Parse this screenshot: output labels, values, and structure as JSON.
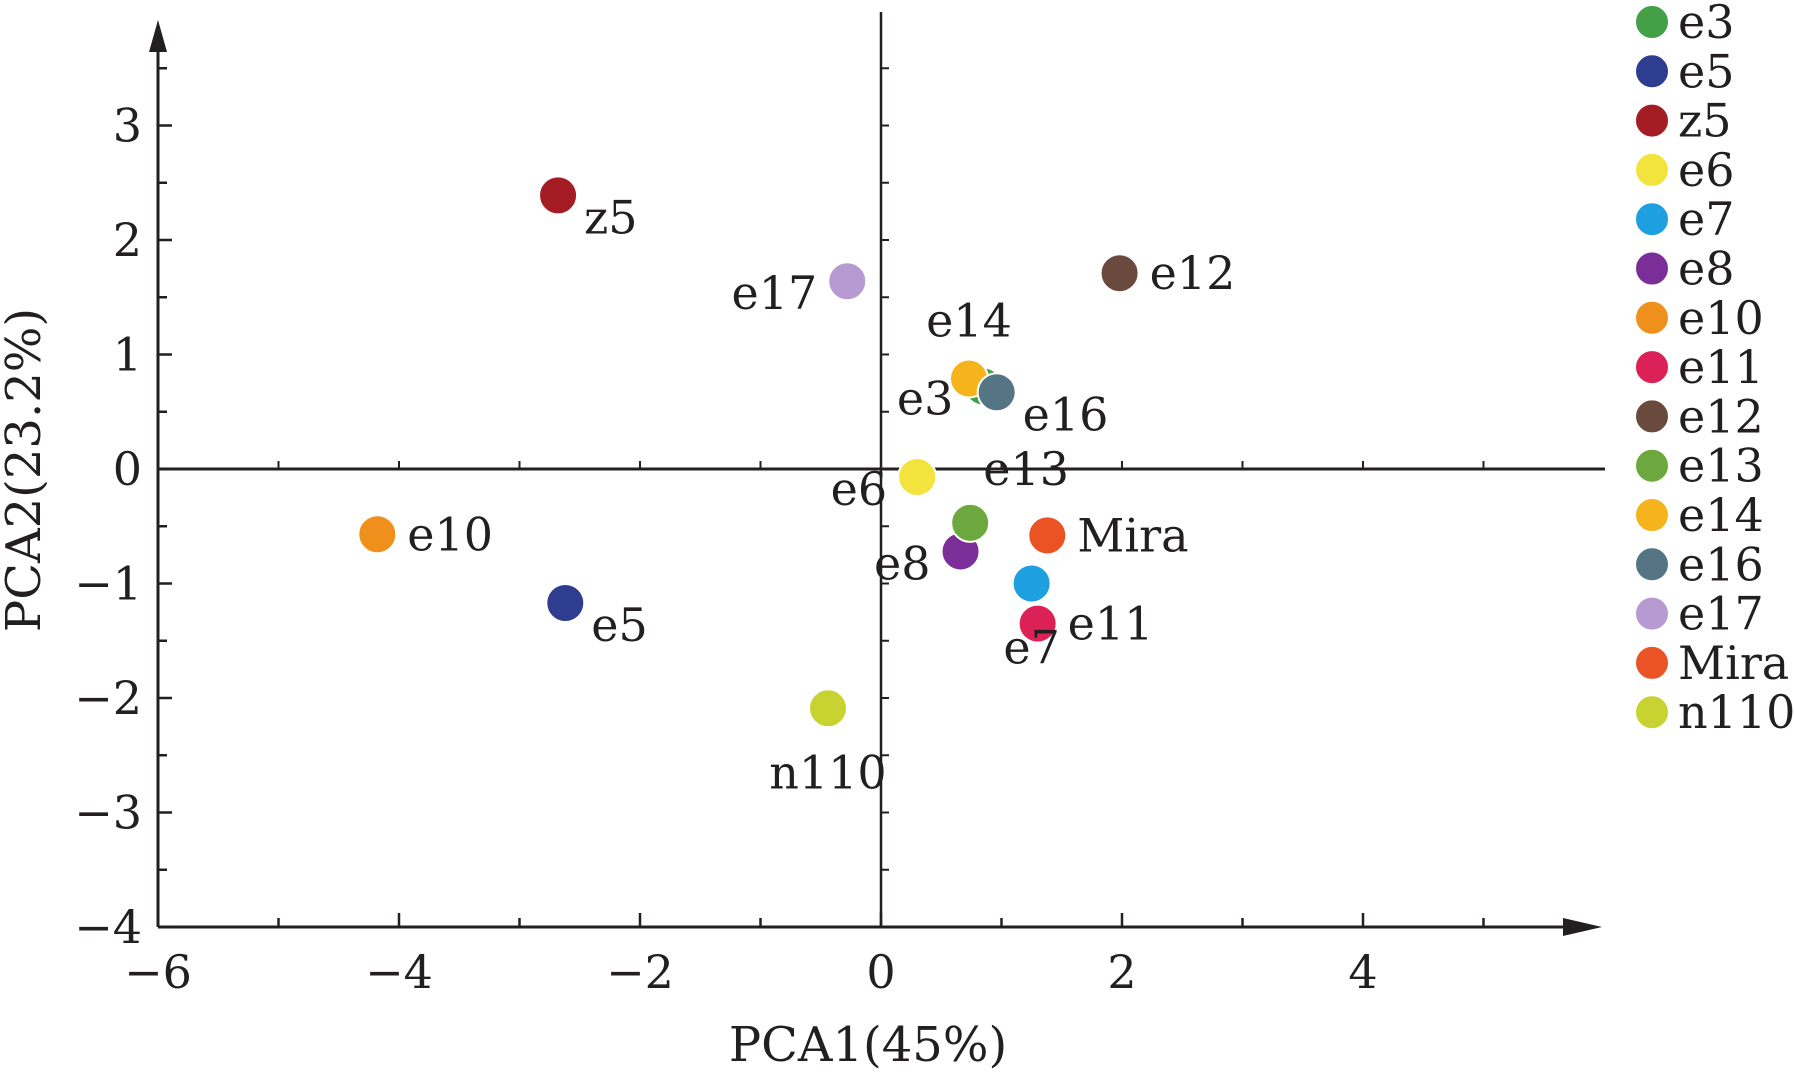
{
  "chart_data": {
    "type": "scatter",
    "title": "",
    "xlabel": "PCA1(45%)",
    "ylabel": "PCA2(23.2%)",
    "xlim": [
      -6,
      6
    ],
    "ylim": [
      -4,
      4
    ],
    "xticks": [
      -6,
      -4,
      -2,
      0,
      2,
      4
    ],
    "yticks": [
      -4,
      -3,
      -2,
      -1,
      0,
      1,
      2,
      3
    ],
    "x_tick_labels": [
      "−6",
      "−4",
      "−2",
      "0",
      "2",
      "4"
    ],
    "y_tick_labels": [
      "−4",
      "−3",
      "−2",
      "−1",
      "0",
      "1",
      "2",
      "3"
    ],
    "legend_position": "right",
    "points": [
      {
        "name": "e3",
        "x": 0.85,
        "y": 0.72,
        "color": "#43a047",
        "label": "e3",
        "label_side": "left-low"
      },
      {
        "name": "e5",
        "x": -2.62,
        "y": -1.17,
        "color": "#2e3d8f",
        "label": "e5",
        "label_side": "right-low"
      },
      {
        "name": "z5",
        "x": -2.68,
        "y": 2.39,
        "color": "#a51d24",
        "label": "z5",
        "label_side": "right-low"
      },
      {
        "name": "e6",
        "x": 0.3,
        "y": -0.07,
        "color": "#f2e33d",
        "label": "e6",
        "label_side": "left-low"
      },
      {
        "name": "e7",
        "x": 1.25,
        "y": -1.0,
        "color": "#1e9fe0",
        "label": "e7",
        "label_side": "below"
      },
      {
        "name": "e8",
        "x": 0.66,
        "y": -0.72,
        "color": "#7b2d98",
        "label": "e8",
        "label_side": "left-low"
      },
      {
        "name": "e10",
        "x": -4.18,
        "y": -0.57,
        "color": "#f0901c",
        "label": "e10",
        "label_side": "right"
      },
      {
        "name": "e11",
        "x": 1.3,
        "y": -1.35,
        "color": "#dc2157",
        "label": "e11",
        "label_side": "right"
      },
      {
        "name": "e12",
        "x": 1.98,
        "y": 1.71,
        "color": "#6b4a3e",
        "label": "e12",
        "label_side": "right"
      },
      {
        "name": "e13",
        "x": 0.74,
        "y": -0.47,
        "color": "#6da83e",
        "label": "e13",
        "label_side": "above-right"
      },
      {
        "name": "e14",
        "x": 0.73,
        "y": 0.79,
        "color": "#f5b41b",
        "label": "e14",
        "label_side": "above"
      },
      {
        "name": "e16",
        "x": 0.96,
        "y": 0.67,
        "color": "#557585",
        "label": "e16",
        "label_side": "right-low"
      },
      {
        "name": "e17",
        "x": -0.28,
        "y": 1.64,
        "color": "#b69ad1",
        "label": "e17",
        "label_side": "left-low"
      },
      {
        "name": "Mira",
        "x": 1.38,
        "y": -0.58,
        "color": "#ea5424",
        "label": "Mira",
        "label_side": "right"
      },
      {
        "name": "n110",
        "x": -0.44,
        "y": -2.09,
        "color": "#c8d332",
        "label": "n110",
        "label_side": "below"
      }
    ],
    "legend": [
      "e3",
      "e5",
      "z5",
      "e6",
      "e7",
      "e8",
      "e10",
      "e11",
      "e12",
      "e13",
      "e14",
      "e16",
      "e17",
      "Mira",
      "n110"
    ]
  },
  "colors": {
    "axis": "#231f20",
    "marker_outline": "#ffffff"
  }
}
